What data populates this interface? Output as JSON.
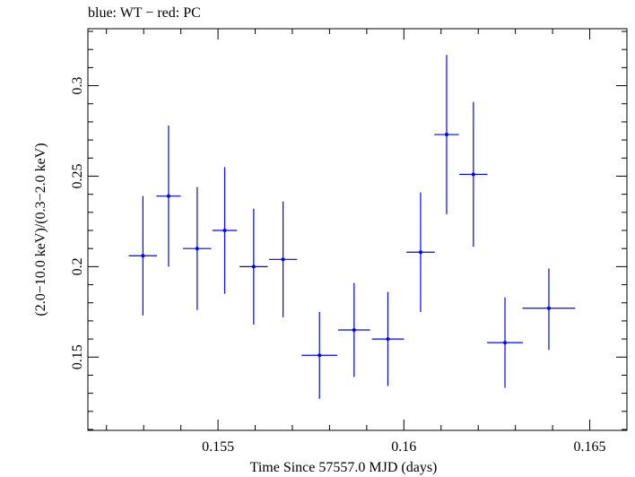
{
  "header": {
    "title": "blue: WT − red: PC"
  },
  "chart_data": {
    "type": "scatter",
    "title": "blue: WT − red: PC",
    "xlabel": "Time Since 57557.0 MJD (days)",
    "ylabel": "(2.0−10.0 keV)/(0.3−2.0 keV)",
    "xlim": [
      0.1515,
      0.166
    ],
    "ylim": [
      0.1095,
      0.3315
    ],
    "x_ticks": [
      0.155,
      0.16,
      0.165
    ],
    "x_tick_labels": [
      "0.155",
      "0.16",
      "0.165"
    ],
    "y_ticks": [
      0.15,
      0.2,
      0.25,
      0.3
    ],
    "y_tick_labels": [
      "0.15",
      "0.2",
      "0.25",
      "0.3"
    ],
    "grid": false,
    "colors": {
      "wt": "#0000ff"
    },
    "series": [
      {
        "points": [
          {
            "x": 0.15298,
            "xerr": 0.00038,
            "y": 0.206,
            "yerr_lo": 0.033,
            "yerr_hi": 0.033
          },
          {
            "x": 0.15367,
            "xerr": 0.00033,
            "y": 0.239,
            "yerr_lo": 0.039,
            "yerr_hi": 0.039
          },
          {
            "x": 0.15444,
            "xerr": 0.00038,
            "y": 0.21,
            "yerr_lo": 0.034,
            "yerr_hi": 0.034
          },
          {
            "x": 0.15518,
            "xerr": 0.00033,
            "y": 0.22,
            "yerr_lo": 0.035,
            "yerr_hi": 0.035
          },
          {
            "x": 0.15596,
            "xerr": 0.00038,
            "y": 0.2,
            "yerr_lo": 0.032,
            "yerr_hi": 0.032
          },
          {
            "x": 0.15675,
            "xerr": 0.00038,
            "y": 0.204,
            "yerr_lo": 0.032,
            "yerr_hi": 0.032
          },
          {
            "x": 0.15773,
            "xerr": 0.00048,
            "y": 0.151,
            "yerr_lo": 0.024,
            "yerr_hi": 0.024
          },
          {
            "x": 0.15866,
            "xerr": 0.00043,
            "y": 0.165,
            "yerr_lo": 0.026,
            "yerr_hi": 0.026
          },
          {
            "x": 0.15957,
            "xerr": 0.00043,
            "y": 0.16,
            "yerr_lo": 0.026,
            "yerr_hi": 0.026
          },
          {
            "x": 0.16045,
            "xerr": 0.00038,
            "y": 0.208,
            "yerr_lo": 0.033,
            "yerr_hi": 0.033
          },
          {
            "x": 0.16115,
            "xerr": 0.00033,
            "y": 0.273,
            "yerr_lo": 0.044,
            "yerr_hi": 0.044
          },
          {
            "x": 0.16187,
            "xerr": 0.00038,
            "y": 0.251,
            "yerr_lo": 0.04,
            "yerr_hi": 0.04
          },
          {
            "x": 0.16272,
            "xerr": 0.00048,
            "y": 0.158,
            "yerr_lo": 0.025,
            "yerr_hi": 0.025
          },
          {
            "x": 0.1639,
            "xerr": 0.00071,
            "y": 0.177,
            "yerr_lo": 0.023,
            "yerr_hi": 0.022
          }
        ]
      }
    ]
  }
}
